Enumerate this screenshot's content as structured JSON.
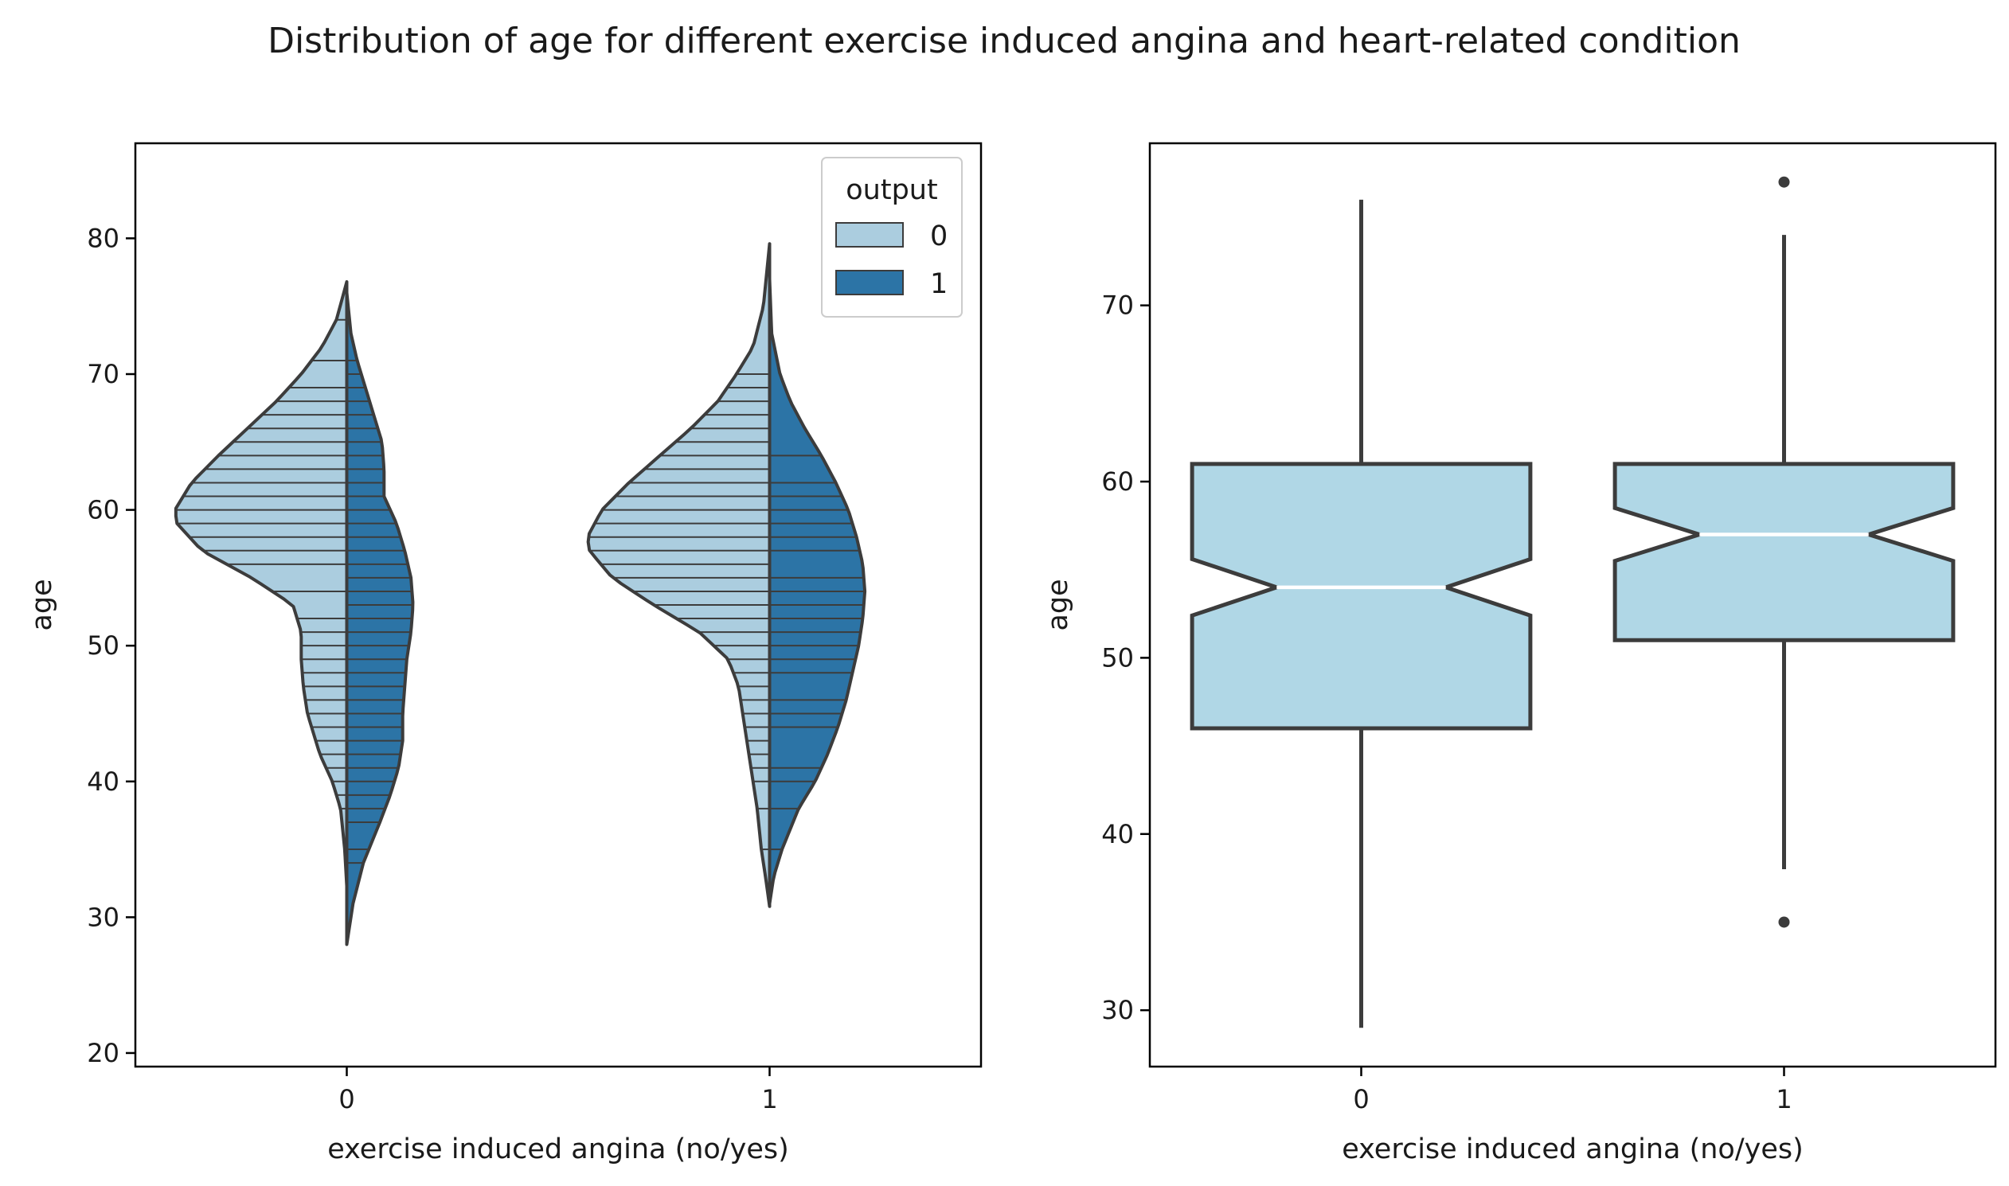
{
  "title": "Distribution of age for different exercise induced angina and heart-related condition",
  "colors": {
    "output_0": "#abcddf",
    "output_1": "#2c74a6",
    "box_fill": "#b0d7e6",
    "line": "#3c3c3c",
    "median": "#ffffff"
  },
  "chart_data": [
    {
      "type": "violin",
      "split": true,
      "inner": "stick",
      "xlabel": "exercise induced angina (no/yes)",
      "ylabel": "age",
      "categories": [
        "0",
        "1"
      ],
      "ylim": [
        19,
        87
      ],
      "yticks": [
        20,
        30,
        40,
        50,
        60,
        70,
        80
      ],
      "legend": {
        "title": "output",
        "placement": "top-right",
        "entries": [
          "0",
          "1"
        ]
      },
      "series": [
        {
          "name": "0",
          "side": "left",
          "groups": [
            {
              "category": "0",
              "range": [
                32.3,
                76.8
              ],
              "density": [
                [
                  32.3,
                  0.0
                ],
                [
                  35,
                  0.01
                ],
                [
                  38,
                  0.03
                ],
                [
                  40,
                  0.07
                ],
                [
                  42,
                  0.13
                ],
                [
                  45,
                  0.19
                ],
                [
                  47,
                  0.21
                ],
                [
                  49,
                  0.22
                ],
                [
                  51,
                  0.22
                ],
                [
                  53,
                  0.26
                ],
                [
                  55,
                  0.46
                ],
                [
                  57,
                  0.7
                ],
                [
                  59,
                  0.82
                ],
                [
                  60,
                  0.83
                ],
                [
                  62,
                  0.75
                ],
                [
                  64,
                  0.62
                ],
                [
                  66,
                  0.48
                ],
                [
                  68,
                  0.34
                ],
                [
                  70,
                  0.22
                ],
                [
                  72,
                  0.12
                ],
                [
                  74,
                  0.05
                ],
                [
                  76.8,
                  0.0
                ]
              ],
              "sticks": [
                38,
                39,
                40,
                41,
                42,
                43,
                44,
                45,
                46,
                47,
                48,
                49,
                50,
                51,
                52,
                54,
                56,
                57,
                58,
                59,
                60,
                61,
                62,
                63,
                64,
                65,
                66,
                67,
                68,
                69,
                71,
                74,
                76
              ]
            },
            {
              "category": "1",
              "range": [
                30.8,
                79.6
              ],
              "density": [
                [
                  30.8,
                  0.0
                ],
                [
                  33,
                  0.02
                ],
                [
                  35,
                  0.04
                ],
                [
                  38,
                  0.06
                ],
                [
                  40,
                  0.08
                ],
                [
                  43,
                  0.11
                ],
                [
                  45,
                  0.13
                ],
                [
                  47,
                  0.15
                ],
                [
                  49,
                  0.2
                ],
                [
                  51,
                  0.34
                ],
                [
                  53,
                  0.56
                ],
                [
                  55,
                  0.76
                ],
                [
                  57,
                  0.87
                ],
                [
                  58,
                  0.88
                ],
                [
                  60,
                  0.81
                ],
                [
                  62,
                  0.68
                ],
                [
                  64,
                  0.53
                ],
                [
                  66,
                  0.38
                ],
                [
                  68,
                  0.25
                ],
                [
                  70,
                  0.16
                ],
                [
                  72,
                  0.08
                ],
                [
                  75,
                  0.03
                ],
                [
                  79.6,
                  0.0
                ]
              ],
              "sticks": [
                35,
                38,
                40,
                41,
                42,
                43,
                44,
                45,
                46,
                47,
                48,
                49,
                50,
                51,
                52,
                53,
                54,
                55,
                56,
                57,
                58,
                59,
                60,
                61,
                62,
                63,
                64,
                65,
                66,
                67,
                68,
                69,
                70
              ]
            }
          ]
        },
        {
          "name": "1",
          "side": "right",
          "groups": [
            {
              "category": "0",
              "range": [
                28.0,
                76.0
              ],
              "density": [
                [
                  28,
                  0.0
                ],
                [
                  31,
                  0.03
                ],
                [
                  34,
                  0.08
                ],
                [
                  37,
                  0.16
                ],
                [
                  39,
                  0.21
                ],
                [
                  41,
                  0.25
                ],
                [
                  43,
                  0.27
                ],
                [
                  45,
                  0.27
                ],
                [
                  47,
                  0.28
                ],
                [
                  49,
                  0.29
                ],
                [
                  51,
                  0.31
                ],
                [
                  53,
                  0.32
                ],
                [
                  55,
                  0.31
                ],
                [
                  57,
                  0.28
                ],
                [
                  59,
                  0.24
                ],
                [
                  61,
                  0.18
                ],
                [
                  63,
                  0.18
                ],
                [
                  65,
                  0.17
                ],
                [
                  67,
                  0.13
                ],
                [
                  69,
                  0.09
                ],
                [
                  71,
                  0.05
                ],
                [
                  73,
                  0.02
                ],
                [
                  76,
                  0.0
                ]
              ],
              "sticks": [
                34,
                35,
                37,
                38,
                39,
                40,
                41,
                42,
                43,
                44,
                45,
                46,
                47,
                48,
                49,
                50,
                51,
                52,
                53,
                54,
                55,
                56,
                57,
                58,
                59,
                60,
                61,
                62,
                63,
                64,
                65,
                66,
                67,
                68,
                69,
                70,
                71,
                74,
                76
              ]
            },
            {
              "category": "1",
              "range": [
                31.0,
                77.0
              ],
              "density": [
                [
                  31,
                  0.0
                ],
                [
                  33,
                  0.02
                ],
                [
                  35,
                  0.06
                ],
                [
                  38,
                  0.14
                ],
                [
                  40,
                  0.22
                ],
                [
                  42,
                  0.28
                ],
                [
                  44,
                  0.33
                ],
                [
                  46,
                  0.37
                ],
                [
                  48,
                  0.4
                ],
                [
                  50,
                  0.43
                ],
                [
                  52,
                  0.45
                ],
                [
                  54,
                  0.46
                ],
                [
                  56,
                  0.45
                ],
                [
                  58,
                  0.42
                ],
                [
                  60,
                  0.38
                ],
                [
                  62,
                  0.32
                ],
                [
                  64,
                  0.25
                ],
                [
                  66,
                  0.17
                ],
                [
                  68,
                  0.1
                ],
                [
                  70,
                  0.05
                ],
                [
                  73,
                  0.01
                ],
                [
                  77,
                  0.0
                ]
              ],
              "sticks": [
                35,
                38,
                40,
                41,
                44,
                45,
                46,
                48,
                49,
                50,
                51,
                52,
                53,
                54,
                55,
                57,
                58,
                59,
                60,
                61,
                62,
                64
              ]
            }
          ]
        }
      ]
    },
    {
      "type": "box",
      "notch": true,
      "xlabel": "exercise induced angina (no/yes)",
      "ylabel": "age",
      "categories": [
        "0",
        "1"
      ],
      "ylim": [
        26.8,
        79.2
      ],
      "yticks": [
        30,
        40,
        50,
        60,
        70
      ],
      "boxes": [
        {
          "category": "0",
          "q1": 46,
          "median": 54,
          "q3": 61,
          "notch_low": 52.4,
          "notch_high": 55.6,
          "whisker_low": 29,
          "whisker_high": 76,
          "outliers": []
        },
        {
          "category": "1",
          "q1": 51,
          "median": 57,
          "q3": 61,
          "notch_low": 55.5,
          "notch_high": 58.5,
          "whisker_low": 38,
          "whisker_high": 74,
          "outliers": [
            35,
            77
          ]
        }
      ]
    }
  ]
}
